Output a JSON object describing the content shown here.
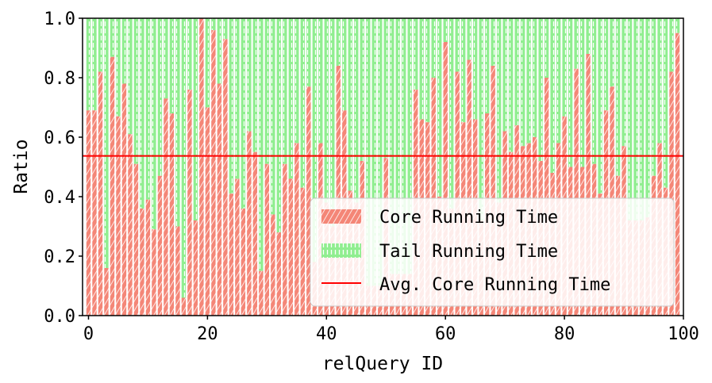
{
  "chart_data": {
    "type": "bar",
    "stacked": true,
    "xlabel": "relQuery ID",
    "ylabel": "Ratio",
    "xlim": [
      -1,
      100
    ],
    "ylim": [
      0.0,
      1.0
    ],
    "x_ticks": [
      "0",
      "20",
      "40",
      "60",
      "80",
      "100"
    ],
    "y_ticks": [
      "0.0",
      "0.2",
      "0.4",
      "0.6",
      "0.8",
      "1.0"
    ],
    "grid": false,
    "legend_position": "lower-right",
    "series": [
      {
        "name": "Core Running Time",
        "color": "#f48677",
        "hatch": "diagonal",
        "values": [
          0.69,
          0.69,
          0.82,
          0.16,
          0.87,
          0.67,
          0.78,
          0.61,
          0.51,
          0.36,
          0.39,
          0.29,
          0.47,
          0.73,
          0.68,
          0.3,
          0.06,
          0.76,
          0.32,
          1.0,
          0.7,
          0.96,
          0.78,
          0.93,
          0.41,
          0.46,
          0.36,
          0.62,
          0.55,
          0.15,
          0.51,
          0.34,
          0.28,
          0.51,
          0.46,
          0.58,
          0.43,
          0.77,
          0.18,
          0.58,
          0.38,
          0.3,
          0.84,
          0.69,
          0.42,
          0.38,
          0.52,
          0.1,
          0.1,
          0.1,
          0.53,
          0.14,
          0.14,
          0.14,
          0.14,
          0.76,
          0.66,
          0.65,
          0.8,
          0.4,
          0.92,
          0.36,
          0.82,
          0.65,
          0.86,
          0.66,
          0.32,
          0.68,
          0.84,
          0.38,
          0.62,
          0.55,
          0.64,
          0.57,
          0.58,
          0.6,
          0.52,
          0.8,
          0.48,
          0.58,
          0.67,
          0.5,
          0.83,
          0.5,
          0.88,
          0.51,
          0.41,
          0.69,
          0.77,
          0.47,
          0.57,
          0.32,
          0.32,
          0.32,
          0.33,
          0.47,
          0.58,
          0.43,
          0.82,
          0.95
        ]
      },
      {
        "name": "Tail Running Time",
        "color": "#90ee90",
        "hatch": "vertical-dashes",
        "values_note_source": "1 - core"
      }
    ],
    "reference_lines": [
      {
        "name": "Avg. Core Running Time",
        "y": 0.537,
        "color": "#ff0000"
      }
    ]
  }
}
